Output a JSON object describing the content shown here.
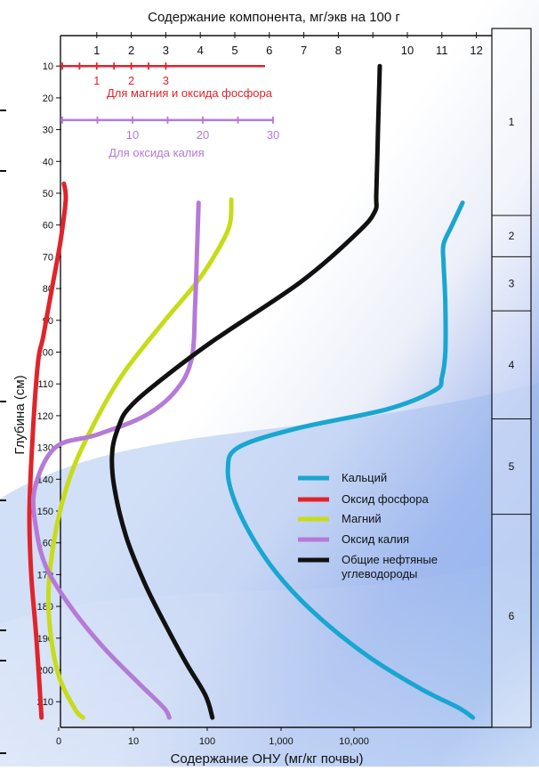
{
  "chart_data": {
    "type": "line",
    "title_top": "Содержание компонента, мг/экв на 100 г",
    "xlabel_bottom": "Содержание ОНУ (мг/кг почвы)",
    "ylabel": "Глубина (см)",
    "top_ticks": [
      "1",
      "2",
      "3",
      "4",
      "5",
      "6",
      "7",
      "8",
      "10",
      "11",
      "12"
    ],
    "top_tick_values": [
      1,
      2,
      3,
      4,
      5,
      6,
      7,
      8,
      10,
      11,
      12
    ],
    "bottom_ticks": [
      "0",
      "10",
      "100",
      "1,000",
      "10,000"
    ],
    "depth_ticks": [
      10,
      20,
      30,
      40,
      50,
      60,
      70,
      80,
      90,
      100,
      110,
      120,
      130,
      140,
      150,
      160,
      170,
      180,
      190,
      200,
      210
    ],
    "ylim": [
      0,
      215
    ],
    "inset_scales": [
      {
        "label": "Для магния и оксида фосфора",
        "ticks": [
          "1",
          "2",
          "3"
        ],
        "tick_values": [
          1,
          2,
          3
        ],
        "depth": 10,
        "color": "#e0242b"
      },
      {
        "label": "Для оксида калия",
        "ticks": [
          "10",
          "20",
          "30"
        ],
        "tick_values": [
          10,
          20,
          30
        ],
        "depth": 27,
        "color": "#b57ad6"
      }
    ],
    "horizons": [
      {
        "label": "1",
        "from": 0,
        "to": 57
      },
      {
        "label": "2",
        "from": 57,
        "to": 70
      },
      {
        "label": "3",
        "from": 70,
        "to": 87
      },
      {
        "label": "4",
        "from": 87,
        "to": 121
      },
      {
        "label": "5",
        "from": 121,
        "to": 151
      },
      {
        "label": "6",
        "from": 151,
        "to": 215
      }
    ],
    "series": [
      {
        "name": "Кальций",
        "color": "#19a6d1",
        "points": [
          [
            11.6,
            53
          ],
          [
            11.3,
            60
          ],
          [
            11.05,
            66
          ],
          [
            11.05,
            72
          ],
          [
            11.1,
            85
          ],
          [
            11.1,
            100
          ],
          [
            11.0,
            108
          ],
          [
            10.8,
            112
          ],
          [
            9.4,
            118
          ],
          [
            6.8,
            124
          ],
          [
            5.1,
            130
          ],
          [
            4.8,
            137
          ],
          [
            5.0,
            147
          ],
          [
            5.6,
            160
          ],
          [
            6.4,
            172
          ],
          [
            7.5,
            184
          ],
          [
            8.9,
            196
          ],
          [
            10.4,
            206
          ],
          [
            11.5,
            212
          ],
          [
            11.9,
            215
          ]
        ]
      },
      {
        "name": "Оксид фосфора",
        "color": "#e0242b",
        "points": [
          [
            0.05,
            47
          ],
          [
            0.1,
            52
          ],
          [
            -0.05,
            65
          ],
          [
            -0.3,
            80
          ],
          [
            -0.55,
            95
          ],
          [
            -0.7,
            103
          ],
          [
            -0.85,
            125
          ],
          [
            -0.95,
            150
          ],
          [
            -0.9,
            170
          ],
          [
            -0.75,
            190
          ],
          [
            -0.6,
            215
          ]
        ]
      },
      {
        "name": "Магний",
        "color": "#c7dc18",
        "points": [
          [
            4.9,
            52
          ],
          [
            4.85,
            60
          ],
          [
            4.5,
            68
          ],
          [
            3.9,
            78
          ],
          [
            2.9,
            91
          ],
          [
            1.75,
            107
          ],
          [
            0.9,
            123
          ],
          [
            0.2,
            140
          ],
          [
            -0.25,
            160
          ],
          [
            -0.4,
            180
          ],
          [
            -0.15,
            200
          ],
          [
            0.35,
            212
          ],
          [
            0.6,
            215
          ]
        ]
      },
      {
        "name": "Оксид калия",
        "color": "#b57ad6",
        "points": [
          [
            3.95,
            53
          ],
          [
            3.9,
            70
          ],
          [
            3.85,
            85
          ],
          [
            3.75,
            102
          ],
          [
            3.3,
            112
          ],
          [
            2.4,
            120
          ],
          [
            1.0,
            126
          ],
          [
            -0.2,
            130
          ],
          [
            -0.8,
            143
          ],
          [
            -0.75,
            156
          ],
          [
            -0.45,
            168
          ],
          [
            0.3,
            181
          ],
          [
            1.2,
            193
          ],
          [
            2.2,
            204
          ],
          [
            2.95,
            212
          ],
          [
            3.1,
            215
          ]
        ]
      },
      {
        "name": "Общие нефтяные углеводороды",
        "color": "#111111",
        "points": [
          [
            9.2,
            10
          ],
          [
            9.15,
            30
          ],
          [
            9.1,
            50
          ],
          [
            9.05,
            56
          ],
          [
            8.5,
            63
          ],
          [
            6.9,
            78
          ],
          [
            4.3,
            97
          ],
          [
            2.6,
            111
          ],
          [
            1.9,
            118
          ],
          [
            1.65,
            123
          ],
          [
            1.45,
            131
          ],
          [
            1.5,
            142
          ],
          [
            1.85,
            158
          ],
          [
            2.4,
            173
          ],
          [
            3.0,
            186
          ],
          [
            3.6,
            198
          ],
          [
            4.15,
            208
          ],
          [
            4.35,
            215
          ]
        ]
      }
    ],
    "legend_position": "right"
  }
}
